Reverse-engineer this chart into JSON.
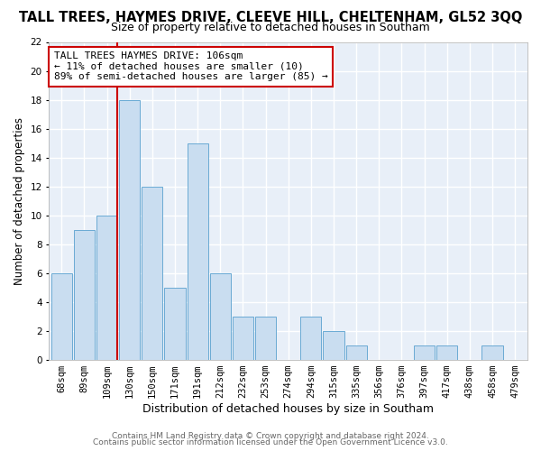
{
  "title": "TALL TREES, HAYMES DRIVE, CLEEVE HILL, CHELTENHAM, GL52 3QQ",
  "subtitle": "Size of property relative to detached houses in Southam",
  "xlabel": "Distribution of detached houses by size in Southam",
  "ylabel": "Number of detached properties",
  "bin_labels": [
    "68sqm",
    "89sqm",
    "109sqm",
    "130sqm",
    "150sqm",
    "171sqm",
    "191sqm",
    "212sqm",
    "232sqm",
    "253sqm",
    "274sqm",
    "294sqm",
    "315sqm",
    "335sqm",
    "356sqm",
    "376sqm",
    "397sqm",
    "417sqm",
    "438sqm",
    "458sqm",
    "479sqm"
  ],
  "bar_heights": [
    6,
    9,
    10,
    18,
    12,
    5,
    15,
    6,
    3,
    3,
    0,
    3,
    2,
    1,
    0,
    0,
    1,
    1,
    0,
    1,
    0
  ],
  "bar_color": "#c9ddf0",
  "bar_edge_color": "#6aaad4",
  "property_line_bin_index": 2,
  "property_line_color": "#cc0000",
  "ylim": [
    0,
    22
  ],
  "yticks": [
    0,
    2,
    4,
    6,
    8,
    10,
    12,
    14,
    16,
    18,
    20,
    22
  ],
  "annotation_text": "TALL TREES HAYMES DRIVE: 106sqm\n← 11% of detached houses are smaller (10)\n89% of semi-detached houses are larger (85) →",
  "annotation_box_facecolor": "#ffffff",
  "annotation_box_edgecolor": "#cc0000",
  "footer_line1": "Contains HM Land Registry data © Crown copyright and database right 2024.",
  "footer_line2": "Contains public sector information licensed under the Open Government Licence v3.0.",
  "fig_facecolor": "#ffffff",
  "plot_facecolor": "#e8eff8",
  "grid_color": "#ffffff",
  "spine_color": "#aaaaaa",
  "title_fontsize": 10.5,
  "subtitle_fontsize": 9,
  "xlabel_fontsize": 9,
  "ylabel_fontsize": 8.5,
  "tick_fontsize": 7.5,
  "annotation_fontsize": 8,
  "footer_fontsize": 6.5,
  "footer_color": "#666666"
}
